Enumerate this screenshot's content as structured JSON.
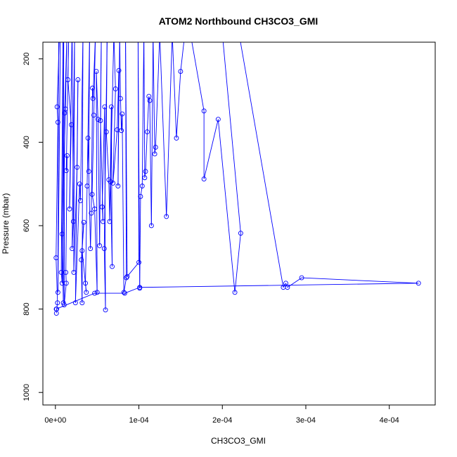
{
  "chart_data": {
    "type": "line",
    "title": "ATOM2 Northbound CH3CO3_GMI",
    "xlabel": "CH3CO3_GMI",
    "ylabel": "Pressure (mbar)",
    "xlim": [
      -1.5e-05,
      0.000455
    ],
    "ylim": [
      1030,
      160
    ],
    "y_reversed": true,
    "x_ticks": [
      0,
      0.0001,
      0.0002,
      0.0003,
      0.0004
    ],
    "x_tick_labels": [
      "0e+00",
      "1e-04",
      "2e-04",
      "3e-04",
      "4e-04"
    ],
    "y_ticks": [
      200,
      400,
      600,
      800,
      1000
    ],
    "y_tick_labels": [
      "200",
      "400",
      "600",
      "800",
      "1000"
    ],
    "grid": false,
    "color": "#0000ff",
    "series": [
      {
        "points": [
          [
            1.2e-06,
            810
          ],
          [
            1.5e-06,
            800
          ],
          [
            2.5e-06,
            785
          ],
          [
            8e-07,
            677
          ],
          [
            3e-06,
            352
          ],
          [
            2e-06,
            315
          ],
          [
            5e-06,
            130
          ],
          [
            6e-06,
            150
          ],
          [
            3e-06,
            760
          ],
          [
            4e-06,
            120
          ],
          [
            9e-06,
            140
          ],
          [
            7e-06,
            712
          ],
          [
            8e-06,
            738
          ],
          [
            1e-05,
            120
          ],
          [
            9.5e-06,
            785
          ],
          [
            8e-06,
            620
          ],
          [
            1.2e-05,
            320
          ],
          [
            1.4e-05,
            130
          ],
          [
            1.1e-05,
            330
          ],
          [
            1.05e-05,
            790
          ],
          [
            1.3e-05,
            738
          ],
          [
            1.25e-05,
            712
          ],
          [
            1.4e-05,
            432
          ],
          [
            1.3e-05,
            468
          ],
          [
            1.6e-05,
            130
          ],
          [
            1.5e-05,
            250
          ],
          [
            1.9e-05,
            358
          ],
          [
            1.7e-05,
            560
          ],
          [
            2e-05,
            120
          ],
          [
            2.15e-05,
            590
          ],
          [
            2e-05,
            655
          ],
          [
            2.3e-05,
            140
          ],
          [
            2.2e-05,
            712
          ],
          [
            2.6e-05,
            460
          ],
          [
            2.7e-05,
            250
          ],
          [
            2.4e-05,
            785
          ],
          [
            2.9e-05,
            500
          ],
          [
            3e-05,
            540
          ],
          [
            3.3e-05,
            140
          ],
          [
            3.2e-05,
            785
          ],
          [
            3.1e-05,
            682
          ],
          [
            3.4e-05,
            592
          ],
          [
            3.2e-05,
            660
          ],
          [
            3.7e-05,
            760
          ],
          [
            3.6e-05,
            738
          ],
          [
            3.8e-05,
            505
          ],
          [
            4.1e-05,
            140
          ],
          [
            4e-05,
            470
          ],
          [
            3.9e-05,
            390
          ],
          [
            4.2e-05,
            655
          ],
          [
            4.3e-05,
            570
          ],
          [
            4.45e-05,
            270
          ],
          [
            4.5e-05,
            295
          ],
          [
            4.8e-05,
            140
          ],
          [
            4.6e-05,
            335
          ],
          [
            4.4e-05,
            525
          ],
          [
            4.7e-05,
            560
          ],
          [
            5e-05,
            760
          ],
          [
            4.9e-05,
            230
          ],
          [
            5.1e-05,
            345
          ],
          [
            5.3e-05,
            648
          ],
          [
            5.5e-05,
            140
          ],
          [
            5.4e-05,
            348
          ],
          [
            5.7e-05,
            590
          ],
          [
            5.6e-05,
            555
          ],
          [
            5.9e-05,
            315
          ],
          [
            6e-05,
            802
          ],
          [
            5.85e-05,
            655
          ],
          [
            6.2e-05,
            140
          ],
          [
            6.1e-05,
            375
          ],
          [
            6.4e-05,
            490
          ],
          [
            6.5e-05,
            590
          ],
          [
            6.7e-05,
            315
          ],
          [
            6.8e-05,
            698
          ],
          [
            6.6e-05,
            495
          ],
          [
            7e-05,
            140
          ],
          [
            7.2e-05,
            272
          ],
          [
            6.9e-05,
            498
          ],
          [
            7.4e-05,
            370
          ],
          [
            7.6e-05,
            228
          ],
          [
            7.5e-05,
            505
          ],
          [
            7.7e-05,
            140
          ],
          [
            7.8e-05,
            295
          ],
          [
            7.9e-05,
            372
          ],
          [
            8e-05,
            332
          ],
          [
            8.2e-05,
            760
          ],
          [
            8.5e-05,
            725
          ],
          [
            8.4e-05,
            140
          ],
          [
            8.6e-05,
            722
          ],
          [
            0.0001,
            688
          ],
          [
            9.9e-05,
            140
          ],
          [
            0.000101,
            750
          ],
          [
            0.000102,
            530
          ],
          [
            0.000104,
            505
          ],
          [
            0.000106,
            140
          ],
          [
            0.000107,
            485
          ],
          [
            0.000108,
            470
          ],
          [
            0.00011,
            375
          ],
          [
            0.000112,
            290
          ],
          [
            0.000113,
            300
          ],
          [
            0.000115,
            600
          ],
          [
            0.000117,
            140
          ],
          [
            0.000119,
            428
          ],
          [
            0.00012,
            412
          ],
          [
            0.000125,
            140
          ],
          [
            0.000133,
            578
          ],
          [
            0.00014,
            140
          ],
          [
            0.000145,
            390
          ],
          [
            0.00015,
            230
          ],
          [
            0.000155,
            140
          ],
          [
            0.00016,
            120
          ],
          [
            0.000178,
            325
          ],
          [
            0.000178,
            488
          ],
          [
            0.000195,
            345
          ],
          [
            0.000215,
            760
          ],
          [
            0.000222,
            618
          ],
          [
            0.0002,
            140
          ],
          [
            0.00022,
            140
          ],
          [
            0.000273,
            748
          ],
          [
            0.000276,
            738
          ],
          [
            0.000278,
            748
          ],
          [
            0.000295,
            725
          ],
          [
            0.000435,
            738
          ],
          [
            0.000101,
            748
          ],
          [
            8.3e-05,
            762
          ],
          [
            4.7e-05,
            762
          ],
          [
            1e-06,
            800
          ]
        ]
      }
    ]
  }
}
